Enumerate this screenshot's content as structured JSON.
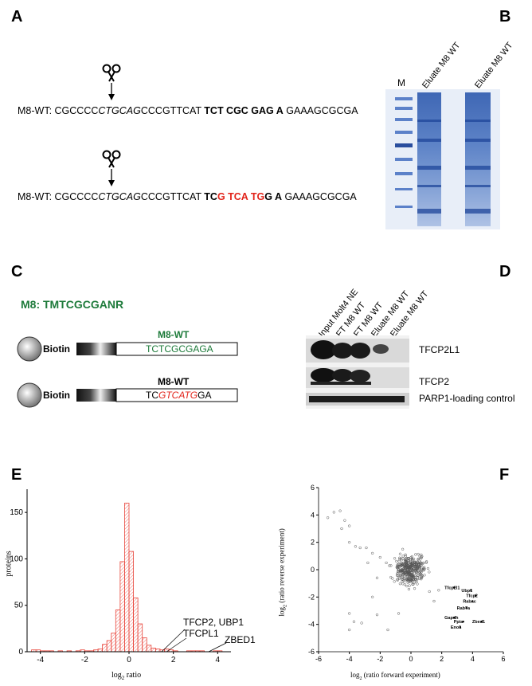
{
  "panels": {
    "A": "A",
    "B": "B",
    "C": "C",
    "D": "D",
    "E": "E",
    "F": "F"
  },
  "panelA": {
    "seq1": {
      "prefix": "M8-WT: CGCCCC",
      "italic": "CTGCAG",
      "mid": "CCCGTTCAT ",
      "bold": "TCT CGC GAG A",
      "suffix": " GAAAGCGCGA"
    },
    "seq2": {
      "prefix": "M8-WT: CGCCCC",
      "italic": "CTGCAG",
      "mid": "CCCGTTCAT ",
      "bold1": "TC",
      "red": "G TCA TG",
      "bold2": "G A",
      "suffix": " GAAAGCGCGA"
    }
  },
  "panelB": {
    "marker": "M",
    "lane1": "Eluate M8 WT",
    "lane2": "Eluate M8 WT"
  },
  "panelC": {
    "motif": "M8: TMTCGCGANR",
    "probe1": {
      "biotin": "Biotin",
      "title": "M8-WT",
      "seq": "TCTCGCGAGA"
    },
    "probe2": {
      "biotin": "Biotin",
      "title": "M8-WT",
      "seq_a": "TC",
      "seq_red": "GTCATG",
      "seq_b": "GA"
    }
  },
  "panelD": {
    "lanes": [
      "Input Molt4 NE",
      "FT M8 WT",
      "FT M8 WT",
      "Eluate M8 WT",
      "Eluate M8 WT"
    ],
    "bands": [
      "TFCP2L1",
      "TFCP2",
      "PARP1-loading control"
    ]
  },
  "panelE": {
    "ylabel": "proteins",
    "xlabel": "log2 ratio",
    "annot1": "TFCP2, UBP1",
    "annot2": "TFCPL1",
    "annot3": "ZBED1"
  },
  "panelF": {
    "xlabel": "log2 (ratio forward experiment)",
    "ylabel": "log2 (ratio reverse experiment)"
  },
  "chart_data": [
    {
      "type": "bar",
      "title": "",
      "xlabel": "log2 ratio",
      "ylabel": "proteins",
      "bin_width": 0.2,
      "x": [
        -4.3,
        -4.1,
        -3.9,
        -3.7,
        -3.5,
        -3.3,
        -3.1,
        -2.9,
        -2.7,
        -2.5,
        -2.3,
        -2.1,
        -1.9,
        -1.7,
        -1.5,
        -1.3,
        -1.1,
        -0.9,
        -0.7,
        -0.5,
        -0.3,
        -0.1,
        0.1,
        0.3,
        0.5,
        0.7,
        0.9,
        1.1,
        1.3,
        1.5,
        1.7,
        1.9,
        2.1,
        2.3,
        2.5,
        2.7,
        2.9,
        3.1,
        3.3,
        3.5,
        3.7,
        3.9,
        4.1,
        4.3
      ],
      "values": [
        2,
        2,
        1,
        1,
        1,
        0,
        1,
        0,
        1,
        0,
        1,
        2,
        1,
        1,
        2,
        3,
        8,
        12,
        20,
        45,
        97,
        160,
        108,
        58,
        30,
        15,
        7,
        4,
        3,
        2,
        3,
        2,
        1,
        0,
        0,
        1,
        1,
        1,
        1,
        0,
        0,
        1,
        1,
        0
      ],
      "xlim": [
        -4.6,
        4.6
      ],
      "ylim": [
        0,
        175
      ],
      "xticks": [
        -4,
        -2,
        0,
        2,
        4
      ],
      "yticks": [
        0,
        50,
        100,
        150
      ],
      "annotations": [
        "TFCP2, UBP1",
        "TFCPL1",
        "ZBED1"
      ]
    },
    {
      "type": "scatter",
      "title": "",
      "xlabel": "log2 (ratio forward experiment)",
      "ylabel": "log2 (ratio reverse experiment)",
      "xlim": [
        -6,
        6
      ],
      "ylim": [
        -6,
        6
      ],
      "xticks": [
        -6,
        -4,
        -2,
        0,
        2,
        4,
        6
      ],
      "yticks": [
        -6,
        -4,
        -2,
        0,
        2,
        4,
        6
      ],
      "labeled_points": [
        {
          "label": "Tfcp2l1",
          "x": 2.8,
          "y": -1.3
        },
        {
          "label": "Ubp1",
          "x": 3.9,
          "y": -1.5
        },
        {
          "label": "Tfcp2",
          "x": 4.2,
          "y": -1.9
        },
        {
          "label": "Rabac",
          "x": 4.0,
          "y": -2.3
        },
        {
          "label": "Rab7a",
          "x": 3.6,
          "y": -2.8
        },
        {
          "label": "Gapdh",
          "x": 2.8,
          "y": -3.5
        },
        {
          "label": "Ppia",
          "x": 3.4,
          "y": -3.8
        },
        {
          "label": "Zbed1",
          "x": 4.6,
          "y": -3.8
        },
        {
          "label": "Eno1",
          "x": 3.2,
          "y": -4.2
        }
      ],
      "outliers": [
        {
          "x": -5.4,
          "y": 3.8
        },
        {
          "x": -5.0,
          "y": 4.2
        },
        {
          "x": -4.6,
          "y": 4.3
        },
        {
          "x": -4.3,
          "y": 3.6
        },
        {
          "x": -4.5,
          "y": 3.0
        },
        {
          "x": -4.0,
          "y": 3.2
        },
        {
          "x": -4.0,
          "y": 2.0
        },
        {
          "x": -3.6,
          "y": 1.7
        },
        {
          "x": -3.3,
          "y": 1.6
        },
        {
          "x": -2.9,
          "y": 1.6
        },
        {
          "x": -2.5,
          "y": 1.2
        },
        {
          "x": -2.8,
          "y": 0.5
        },
        {
          "x": -2.0,
          "y": 0.9
        },
        {
          "x": -1.6,
          "y": 0.5
        },
        {
          "x": -1.3,
          "y": 0.3
        },
        {
          "x": -2.2,
          "y": -0.6
        },
        {
          "x": -2.5,
          "y": -2.0
        },
        {
          "x": -2.2,
          "y": -3.3
        },
        {
          "x": -4.0,
          "y": -3.2
        },
        {
          "x": -3.7,
          "y": -3.8
        },
        {
          "x": -3.2,
          "y": -3.9
        },
        {
          "x": -4.0,
          "y": -4.4
        },
        {
          "x": -1.5,
          "y": -4.4
        },
        {
          "x": -0.8,
          "y": -3.2
        },
        {
          "x": 1.2,
          "y": -1.6
        },
        {
          "x": 1.8,
          "y": -1.5
        },
        {
          "x": 1.5,
          "y": -2.3
        }
      ],
      "cluster": {
        "center": [
          0,
          0
        ],
        "spread_x": 0.6,
        "spread_y": 0.6,
        "count": 380
      }
    }
  ]
}
